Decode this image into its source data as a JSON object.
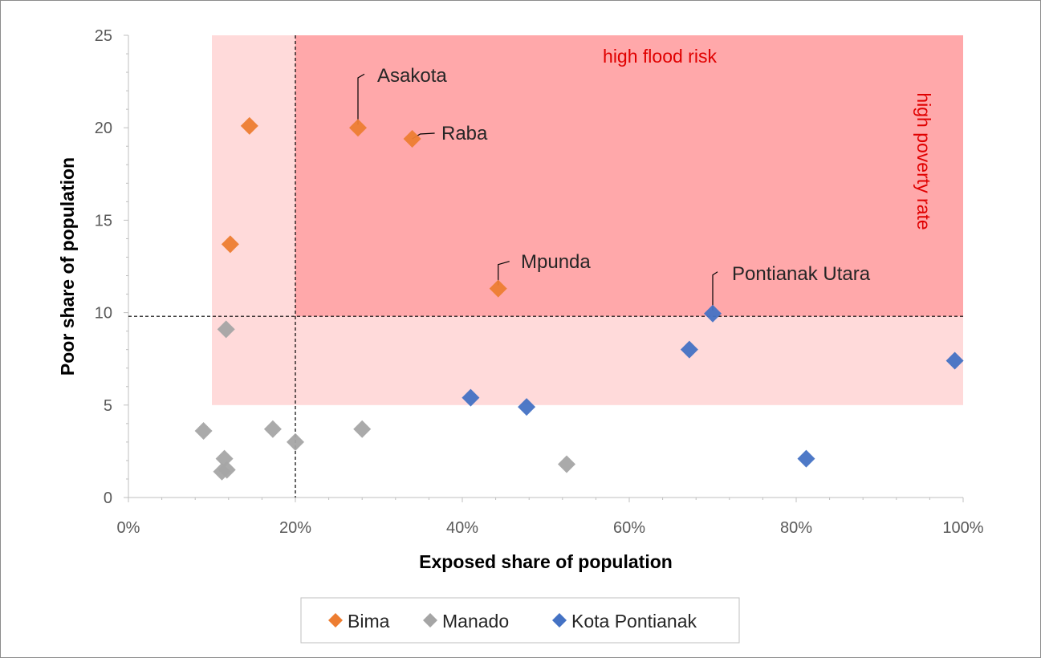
{
  "chart_data": {
    "type": "scatter",
    "xlabel": "Exposed share of population",
    "ylabel": "Poor share of population",
    "xlim": [
      0,
      1
    ],
    "ylim": [
      0,
      25
    ],
    "x_ticks": [
      {
        "value": 0,
        "label": "0%"
      },
      {
        "value": 0.2,
        "label": "20%"
      },
      {
        "value": 0.4,
        "label": "40%"
      },
      {
        "value": 0.6,
        "label": "60%"
      },
      {
        "value": 0.8,
        "label": "80%"
      },
      {
        "value": 1.0,
        "label": "100%"
      }
    ],
    "y_ticks": [
      {
        "value": 0,
        "label": "0"
      },
      {
        "value": 5,
        "label": "5"
      },
      {
        "value": 10,
        "label": "10"
      },
      {
        "value": 15,
        "label": "15"
      },
      {
        "value": 20,
        "label": "20"
      },
      {
        "value": 25,
        "label": "25"
      }
    ],
    "thresholds": {
      "x": 0.2,
      "y": 9.8
    },
    "regions": {
      "light": {
        "x": [
          0.1,
          1.0
        ],
        "y": [
          5,
          25
        ],
        "color": "#ffdada"
      },
      "dark": {
        "x": [
          0.2,
          1.0
        ],
        "y": [
          9.8,
          25
        ],
        "color": "#ffa8aa"
      }
    },
    "region_labels": {
      "flood": "high flood risk",
      "poverty": "high poverty rate"
    },
    "series": [
      {
        "name": "Bima",
        "color": "#ed7d31",
        "points": [
          {
            "x": 0.145,
            "y": 20.1
          },
          {
            "x": 0.275,
            "y": 20.0
          },
          {
            "x": 0.34,
            "y": 19.4
          },
          {
            "x": 0.122,
            "y": 13.7
          },
          {
            "x": 0.443,
            "y": 11.3
          }
        ]
      },
      {
        "name": "Manado",
        "color": "#a5a5a5",
        "points": [
          {
            "x": 0.117,
            "y": 9.1
          },
          {
            "x": 0.09,
            "y": 3.6
          },
          {
            "x": 0.173,
            "y": 3.7
          },
          {
            "x": 0.2,
            "y": 3.0
          },
          {
            "x": 0.28,
            "y": 3.7
          },
          {
            "x": 0.115,
            "y": 2.1
          },
          {
            "x": 0.112,
            "y": 1.4
          },
          {
            "x": 0.118,
            "y": 1.5
          },
          {
            "x": 0.525,
            "y": 1.8
          }
        ]
      },
      {
        "name": "Kota Pontianak",
        "color": "#4472c4",
        "points": [
          {
            "x": 0.41,
            "y": 5.4
          },
          {
            "x": 0.477,
            "y": 4.9
          },
          {
            "x": 0.672,
            "y": 8.0
          },
          {
            "x": 0.7,
            "y": 9.95
          },
          {
            "x": 0.99,
            "y": 7.4
          },
          {
            "x": 0.812,
            "y": 2.1
          }
        ]
      }
    ],
    "annotations": [
      {
        "label": "Asakota",
        "x": 0.275,
        "y": 20.0
      },
      {
        "label": "Raba",
        "x": 0.34,
        "y": 19.4
      },
      {
        "label": "Mpunda",
        "x": 0.443,
        "y": 11.3
      },
      {
        "label": "Pontianak Utara",
        "x": 0.7,
        "y": 9.95
      }
    ],
    "legend": {
      "placement": "bottom",
      "entries": [
        "Bima",
        "Manado",
        "Kota Pontianak"
      ]
    }
  }
}
